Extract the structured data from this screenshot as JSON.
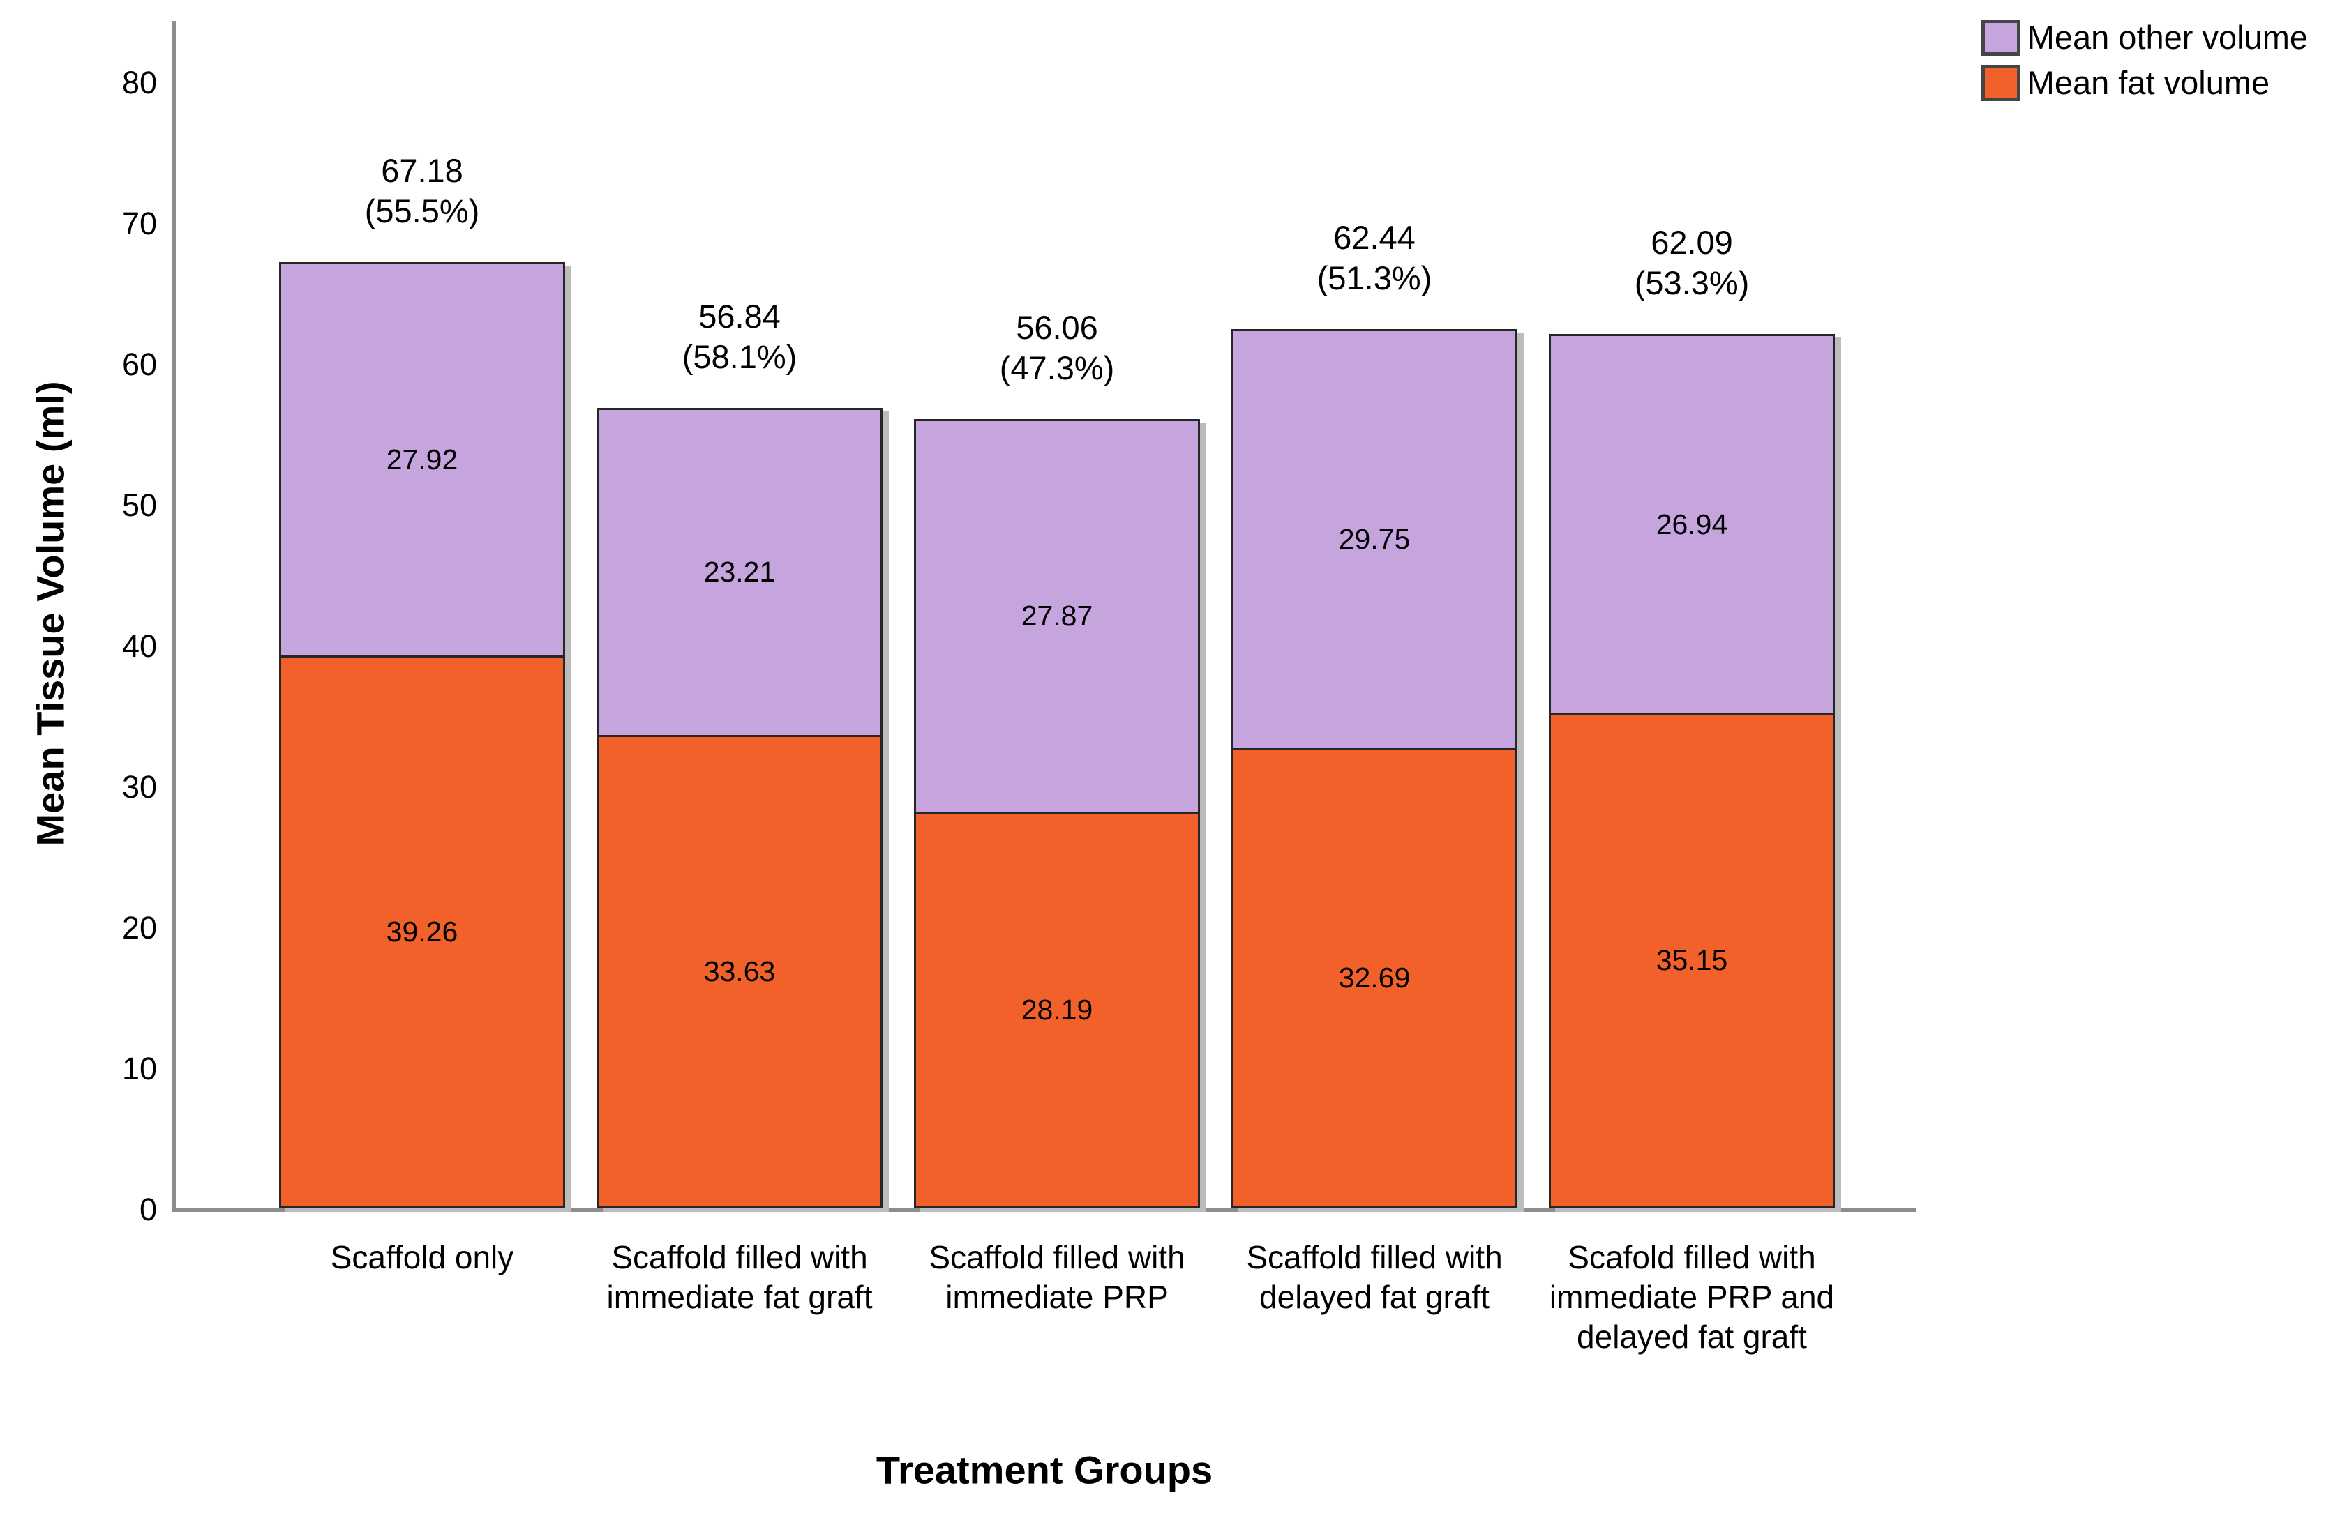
{
  "chart_data": {
    "type": "bar",
    "stacked": true,
    "xlabel": "Treatment Groups",
    "ylabel": "Mean Tissue Volume (ml)",
    "ylim": [
      0,
      80
    ],
    "yticks": [
      0,
      10,
      20,
      30,
      40,
      50,
      60,
      70,
      80
    ],
    "grid": false,
    "legend_position": "top-right",
    "categories": [
      "Scaffold only",
      "Scaffold filled with immediate fat graft",
      "Scaffold filled with immediate PRP",
      "Scaffold filled with delayed fat graft",
      "Scafold filled with immediate PRP and delayed fat graft"
    ],
    "series": [
      {
        "name": "Mean fat volume",
        "color": "#f2612a",
        "values": [
          39.26,
          33.63,
          28.19,
          32.69,
          35.15
        ]
      },
      {
        "name": "Mean other volume",
        "color": "#c6a5df",
        "values": [
          27.92,
          23.21,
          27.87,
          29.75,
          26.94
        ]
      }
    ],
    "totals": [
      {
        "value": "67.18",
        "pct": "(55.5%)"
      },
      {
        "value": "56.84",
        "pct": "(58.1%)"
      },
      {
        "value": "56.06",
        "pct": "(47.3%)"
      },
      {
        "value": "62.44",
        "pct": "(51.3%)"
      },
      {
        "value": "62.09",
        "pct": "(53.3%)"
      }
    ],
    "legend": [
      {
        "label": "Mean other volume",
        "color": "#c6a5df"
      },
      {
        "label": "Mean fat volume",
        "color": "#f2612a"
      }
    ]
  }
}
